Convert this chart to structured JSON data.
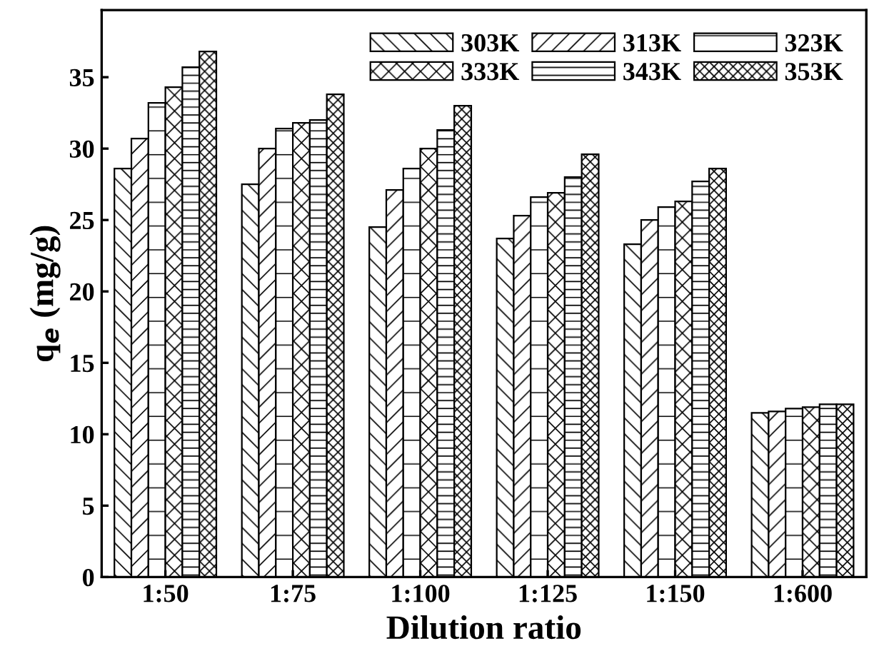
{
  "chart_data": {
    "type": "bar",
    "xlabel": "Dilution ratio",
    "ylabel": "q$_{e}$ (mg/g)",
    "categories": [
      "1:50",
      "1:75",
      "1:100",
      "1:125",
      "1:150",
      "1:600"
    ],
    "series": [
      {
        "name": "303K",
        "color": "#000000",
        "values": [
          28.6,
          27.5,
          24.5,
          23.7,
          23.3,
          11.5
        ]
      },
      {
        "name": "313K",
        "color": "#000000",
        "values": [
          30.7,
          30.0,
          27.1,
          25.3,
          25.0,
          11.6
        ]
      },
      {
        "name": "323K",
        "color": "#000000",
        "values": [
          33.2,
          31.4,
          28.6,
          26.6,
          25.9,
          11.8
        ]
      },
      {
        "name": "333K",
        "color": "#000000",
        "values": [
          34.3,
          31.8,
          30.0,
          26.9,
          26.3,
          11.9
        ]
      },
      {
        "name": "343K",
        "color": "#000000",
        "values": [
          35.7,
          32.0,
          31.3,
          28.0,
          27.7,
          12.1
        ]
      },
      {
        "name": "353K",
        "color": "#000000",
        "values": [
          36.8,
          33.8,
          33.0,
          29.6,
          28.6,
          12.1
        ]
      }
    ],
    "ylim": [
      0,
      39.7
    ],
    "yticks": [
      0,
      5,
      10,
      15,
      20,
      25,
      30,
      35
    ],
    "grid": false,
    "legend": "top right"
  }
}
